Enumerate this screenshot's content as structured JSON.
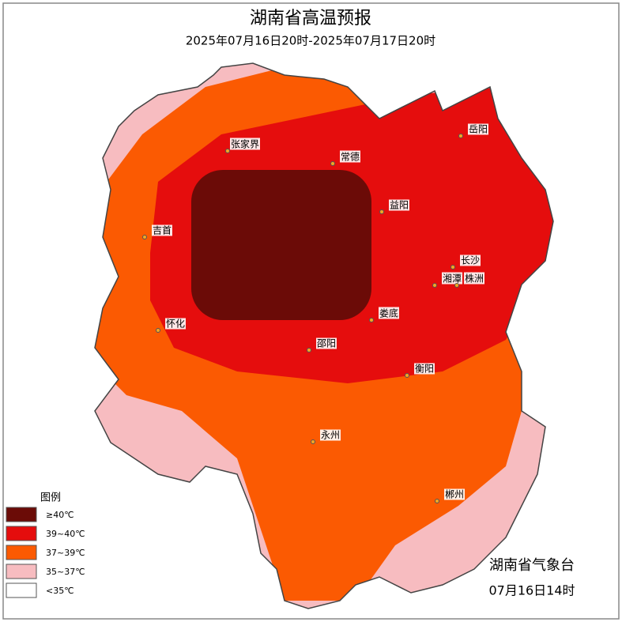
{
  "header": {
    "title": "湖南省高温预报",
    "subtitle": "2025年07月16日20时-2025年07月17日20时"
  },
  "cities": [
    {
      "label": "岳阳"
    },
    {
      "label": "张家界"
    },
    {
      "label": "常德"
    },
    {
      "label": "益阳"
    },
    {
      "label": "吉首"
    },
    {
      "label": "长沙"
    },
    {
      "label": "湘潭"
    },
    {
      "label": "株洲"
    },
    {
      "label": "怀化"
    },
    {
      "label": "娄底"
    },
    {
      "label": "邵阳"
    },
    {
      "label": "衡阳"
    },
    {
      "label": "永州"
    },
    {
      "label": "郴州"
    }
  ],
  "legend": {
    "title": "图例",
    "items": [
      {
        "label": "≥40℃",
        "color": "#6b0b07"
      },
      {
        "label": "39~40℃",
        "color": "#e50d0d"
      },
      {
        "label": "37~39℃",
        "color": "#fb5a02"
      },
      {
        "label": "35~37℃",
        "color": "#f7bcc0"
      },
      {
        "label": "<35℃",
        "color": "#ffffff"
      }
    ]
  },
  "footer": {
    "issuer": "湖南省气象台",
    "time": "07月16日14时"
  }
}
